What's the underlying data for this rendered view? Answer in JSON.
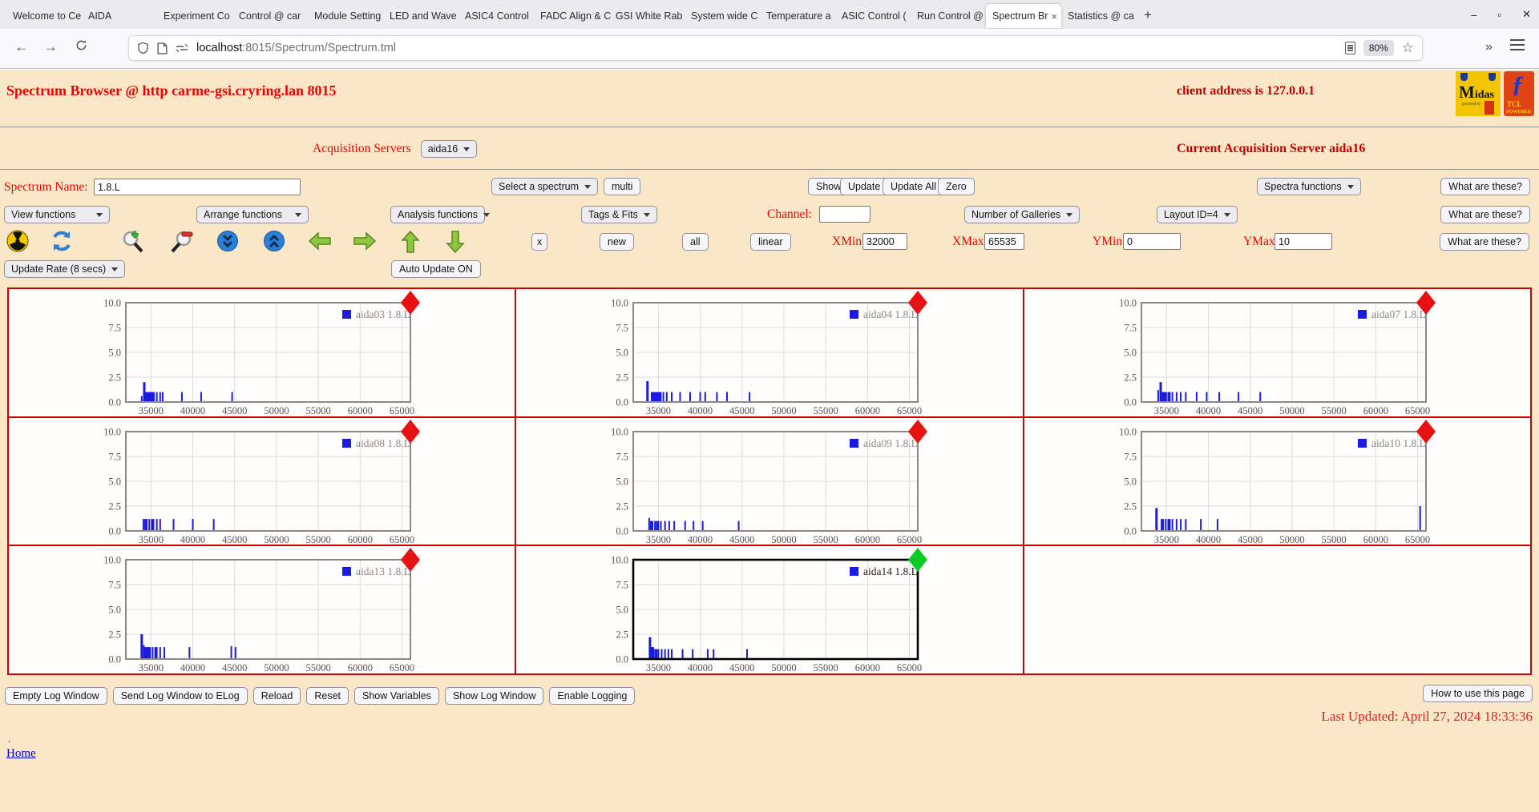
{
  "browser": {
    "tabs": [
      {
        "label": "Welcome to Ce",
        "active": false
      },
      {
        "label": "AIDA",
        "active": false
      },
      {
        "label": "Experiment Co",
        "active": false
      },
      {
        "label": "Control @ car",
        "active": false
      },
      {
        "label": "Module Setting",
        "active": false
      },
      {
        "label": "LED and Wave",
        "active": false
      },
      {
        "label": "ASIC4 Control",
        "active": false
      },
      {
        "label": "FADC Align & C",
        "active": false
      },
      {
        "label": "GSI White Rab",
        "active": false
      },
      {
        "label": "System wide C",
        "active": false
      },
      {
        "label": "Temperature a",
        "active": false
      },
      {
        "label": "ASIC Control (",
        "active": false
      },
      {
        "label": "Run Control @",
        "active": false
      },
      {
        "label": "Spectrum Br",
        "active": true
      },
      {
        "label": "Statistics @ ca",
        "active": false
      }
    ],
    "new_tab_label": "+",
    "window_controls": {
      "minimize": "–",
      "maximize": "▫",
      "close": "✕"
    },
    "nav": {
      "back": "←",
      "forward": "→"
    },
    "url": {
      "host": "localhost",
      "path": ":8015/Spectrum/Spectrum.tml"
    },
    "zoom_badge": "80%",
    "overflow_chevrons": "»"
  },
  "page": {
    "title": "Spectrum Browser @ http carme-gsi.cryring.lan 8015",
    "client_address": "client address is 127.0.0.1",
    "logos": {
      "midas_m": "M",
      "midas_rest": "idas",
      "midas_powered": "powered by",
      "tcl_f": "ƒ",
      "tcl_line1": "TCL",
      "tcl_line2": "POWERED"
    },
    "acquisition": {
      "label": "Acquisition Servers",
      "selected": "aida16",
      "current": "Current Acquisition Server aida16"
    },
    "spectrum_row": {
      "name_label": "Spectrum Name:",
      "name_value": "1.8.L",
      "select_spectrum": "Select a spectrum",
      "multi": "multi",
      "show": "Show",
      "update": "Update",
      "update_all": "Update All",
      "zero": "Zero",
      "spectra_functions": "Spectra functions",
      "what": "What are these?"
    },
    "functions_row": {
      "view": "View functions",
      "arrange": "Arrange functions",
      "analysis": "Analysis functions",
      "tags": "Tags & Fits",
      "channel_label": "Channel:",
      "channel_value": "",
      "galleries": "Number of Galleries",
      "layout": "Layout ID=4",
      "what": "What are these?"
    },
    "axis_row": {
      "x_btn": "x",
      "new_btn": "new",
      "all_btn": "all",
      "linear_btn": "linear",
      "xmin_label": "XMin",
      "xmin_value": "32000",
      "xmax_label": "XMax",
      "xmax_value": "65535",
      "ymin_label": "YMin",
      "ymin_value": "0",
      "ymax_label": "YMax",
      "ymax_value": "10",
      "what": "What are these?",
      "toolbar_icons": [
        "radiation-icon",
        "refresh-icon",
        "zoom-in-icon",
        "zoom-out-icon",
        "collapse-vertical-icon",
        "expand-vertical-icon",
        "arrow-left-icon",
        "arrow-right-icon",
        "arrow-up-icon",
        "arrow-down-icon"
      ]
    },
    "update_row": {
      "rate": "Update Rate (8 secs)",
      "auto": "Auto Update ON"
    },
    "footer": {
      "buttons": [
        "Empty Log Window",
        "Send Log Window to ELog",
        "Reload",
        "Reset",
        "Show Variables",
        "Show Log Window",
        "Enable Logging"
      ],
      "help": "How to use this page",
      "last_updated": "Last Updated: April 27, 2024 18:33:36",
      "dot": ".",
      "home": "Home"
    },
    "colors": {
      "page_bg": "#fae7c8",
      "cell_border": "#cf0000",
      "label_red": "#f40000",
      "dark_red": "#c40000",
      "spike_blue": "#1a1ae0"
    }
  },
  "chart_data": {
    "type": "bar",
    "note": "sparse spike histograms, spikes = [x, height, optional px width]",
    "x_ticks": [
      35000,
      40000,
      45000,
      50000,
      55000,
      60000,
      65000
    ],
    "y_ticks": [
      0,
      2.5,
      5,
      7.5,
      10
    ],
    "y_tick_labels": [
      "0.0",
      "2.5",
      "5.0",
      "7.5",
      "10.0"
    ],
    "xlim": [
      32000,
      65535
    ],
    "ylim": [
      0,
      10
    ],
    "render_domain": [
      32000,
      66000
    ],
    "grid": true,
    "legend_position": "top-right",
    "series_color": "#1a1ae0",
    "charts": [
      {
        "name": "aida03 1.8.L",
        "indicator": "#e81111",
        "frame": "#8a8a8a",
        "legend_text": "#8a8a8a",
        "bold": false,
        "spikes": [
          [
            33900,
            0.6,
            2
          ],
          [
            34200,
            2.0,
            3
          ],
          [
            34400,
            1.0,
            5
          ],
          [
            34700,
            1.0,
            5
          ],
          [
            35000,
            1.0,
            4
          ],
          [
            35300,
            1.0,
            3
          ],
          [
            35700,
            1.0,
            2
          ],
          [
            36100,
            1.0,
            2
          ],
          [
            36400,
            1.0,
            2
          ],
          [
            38700,
            1.0,
            2
          ],
          [
            41000,
            1.0,
            2
          ],
          [
            44700,
            1.0,
            2
          ]
        ]
      },
      {
        "name": "aida04 1.8.L",
        "indicator": "#e81111",
        "frame": "#8a8a8a",
        "legend_text": "#8a8a8a",
        "bold": false,
        "spikes": [
          [
            33700,
            2.1,
            3
          ],
          [
            34300,
            1.0,
            4
          ],
          [
            34600,
            1.0,
            4
          ],
          [
            34900,
            1.0,
            3
          ],
          [
            35200,
            1.0,
            4
          ],
          [
            35600,
            1.0,
            2
          ],
          [
            36000,
            1.0,
            2
          ],
          [
            36600,
            1.0,
            2
          ],
          [
            37600,
            1.0,
            2
          ],
          [
            38800,
            1.0,
            2
          ],
          [
            40000,
            1.0,
            2
          ],
          [
            40600,
            1.0,
            2
          ],
          [
            42000,
            1.0,
            2
          ],
          [
            43200,
            1.0,
            2
          ],
          [
            45900,
            1.0,
            2
          ]
        ]
      },
      {
        "name": "aida07 1.8.L",
        "indicator": "#e81111",
        "frame": "#8a8a8a",
        "legend_text": "#8a8a8a",
        "bold": false,
        "spikes": [
          [
            34000,
            1.2,
            2
          ],
          [
            34300,
            2.0,
            3
          ],
          [
            34600,
            1.0,
            4
          ],
          [
            34900,
            1.0,
            3
          ],
          [
            35300,
            1.0,
            4
          ],
          [
            35700,
            1.0,
            2
          ],
          [
            36200,
            1.0,
            2
          ],
          [
            36700,
            1.0,
            2
          ],
          [
            37300,
            1.0,
            2
          ],
          [
            38600,
            1.0,
            2
          ],
          [
            39800,
            1.0,
            2
          ],
          [
            41300,
            1.0,
            2
          ],
          [
            43600,
            1.0,
            2
          ],
          [
            46200,
            1.0,
            2
          ]
        ]
      },
      {
        "name": "aida08 1.8.L",
        "indicator": "#e81111",
        "frame": "#8a8a8a",
        "legend_text": "#8a8a8a",
        "bold": false,
        "spikes": [
          [
            34100,
            1.2,
            2
          ],
          [
            34400,
            1.2,
            4
          ],
          [
            34800,
            1.2,
            2
          ],
          [
            35200,
            1.2,
            4
          ],
          [
            35700,
            1.2,
            2
          ],
          [
            36100,
            1.2,
            2
          ],
          [
            37700,
            1.2,
            2
          ],
          [
            40000,
            1.2,
            2
          ],
          [
            42500,
            1.2,
            2
          ]
        ]
      },
      {
        "name": "aida09 1.8.L",
        "indicator": "#e81111",
        "frame": "#8a8a8a",
        "legend_text": "#8a8a8a",
        "bold": false,
        "spikes": [
          [
            33900,
            1.3,
            2
          ],
          [
            34200,
            1.0,
            4
          ],
          [
            34600,
            1.0,
            2
          ],
          [
            34900,
            1.0,
            4
          ],
          [
            35300,
            1.0,
            2
          ],
          [
            35800,
            1.0,
            2
          ],
          [
            36300,
            1.0,
            2
          ],
          [
            36900,
            1.0,
            2
          ],
          [
            38200,
            1.0,
            2
          ],
          [
            39200,
            1.0,
            2
          ],
          [
            40300,
            1.0,
            2
          ],
          [
            44600,
            1.0,
            2
          ]
        ]
      },
      {
        "name": "aida10 1.8.L",
        "indicator": "#e81111",
        "frame": "#8a8a8a",
        "legend_text": "#8a8a8a",
        "bold": false,
        "spikes": [
          [
            33800,
            2.3,
            3
          ],
          [
            34500,
            1.2,
            4
          ],
          [
            34900,
            1.2,
            2
          ],
          [
            35300,
            1.2,
            4
          ],
          [
            35700,
            1.2,
            2
          ],
          [
            36200,
            1.2,
            2
          ],
          [
            36700,
            1.2,
            2
          ],
          [
            37300,
            1.2,
            2
          ],
          [
            39100,
            1.2,
            2
          ],
          [
            41100,
            1.2,
            2
          ],
          [
            65300,
            2.5,
            2
          ]
        ]
      },
      {
        "name": "aida13 1.8.L",
        "indicator": "#e81111",
        "frame": "#8a8a8a",
        "legend_text": "#8a8a8a",
        "bold": false,
        "spikes": [
          [
            33900,
            2.5,
            3
          ],
          [
            34150,
            1.4,
            2
          ],
          [
            34400,
            1.2,
            5
          ],
          [
            34800,
            1.2,
            4
          ],
          [
            35200,
            1.2,
            2
          ],
          [
            35600,
            1.2,
            4
          ],
          [
            36100,
            1.2,
            2
          ],
          [
            36600,
            1.2,
            2
          ],
          [
            39600,
            1.2,
            2
          ],
          [
            44600,
            1.3,
            2
          ],
          [
            45100,
            1.2,
            2
          ]
        ]
      },
      {
        "name": "aida14 1.8.L",
        "indicator": "#0ccc22",
        "frame": "#000000",
        "legend_text": "#222222",
        "bold": true,
        "spikes": [
          [
            34000,
            2.2,
            3
          ],
          [
            34300,
            1.2,
            4
          ],
          [
            34700,
            1.0,
            4
          ],
          [
            35000,
            1.0,
            2
          ],
          [
            35400,
            1.0,
            2
          ],
          [
            35800,
            1.0,
            2
          ],
          [
            36200,
            1.0,
            2
          ],
          [
            36600,
            1.0,
            2
          ],
          [
            37900,
            1.0,
            2
          ],
          [
            39100,
            1.0,
            2
          ],
          [
            40900,
            1.0,
            2
          ],
          [
            41600,
            1.0,
            2
          ],
          [
            45600,
            1.0,
            2
          ]
        ]
      }
    ]
  }
}
